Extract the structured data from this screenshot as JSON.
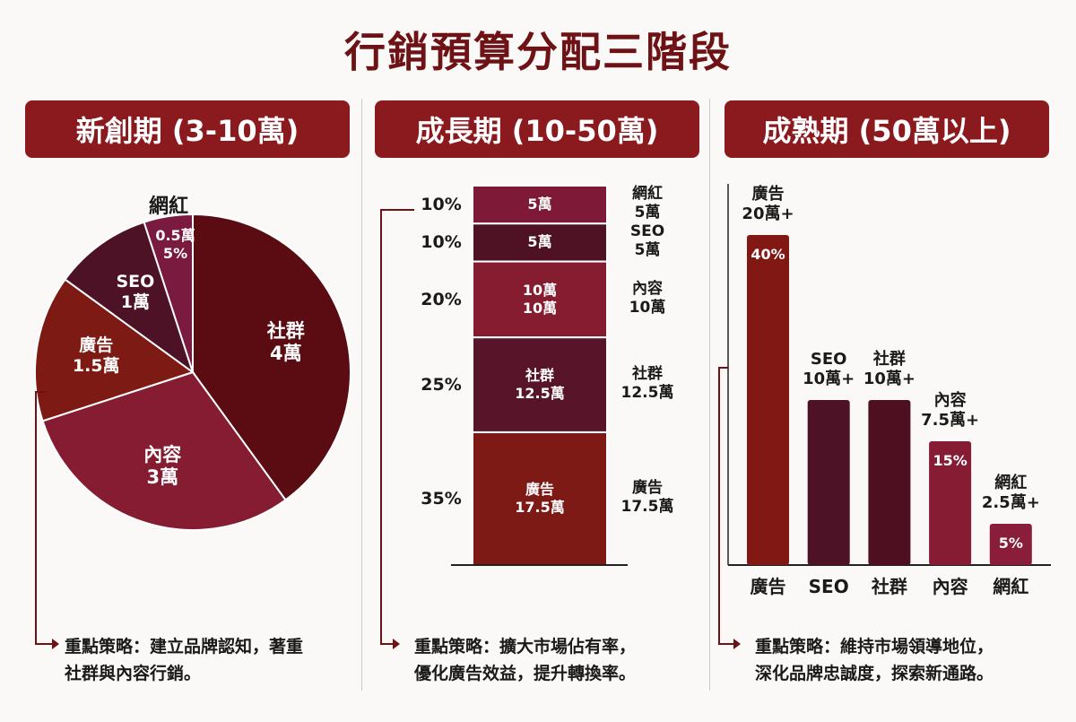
{
  "title": "行銷預算分配三階段",
  "colors": {
    "title": "#6e1216",
    "banner": "#8a1a1e",
    "line": "#6e1216"
  },
  "stages": [
    {
      "banner": "新創期 (3-10萬)",
      "note_line1": "重點策略：建立品牌認知，著重",
      "note_line2": "社群與內容行銷。"
    },
    {
      "banner": "成長期 (10-50萬)",
      "note_line1": "重點策略：擴大市場佔有率，",
      "note_line2": "優化廣告效益，提升轉換率。"
    },
    {
      "banner": "成熟期 (50萬以上)",
      "note_line1": "重點策略：維持市場領導地位，",
      "note_line2": "深化品牌忠誠度，探索新通路。"
    }
  ],
  "chart_data": [
    {
      "type": "pie",
      "unit": "萬",
      "slices": [
        {
          "name": "社群",
          "value": 4,
          "label": "4萬",
          "color": "#5a0c12"
        },
        {
          "name": "內容",
          "value": 3,
          "label": "3萬",
          "color": "#861c32"
        },
        {
          "name": "廣告",
          "value": 1.5,
          "label": "1.5萬",
          "color": "#7e1a14"
        },
        {
          "name": "SEO",
          "value": 1,
          "label": "1萬",
          "color": "#4e1226"
        },
        {
          "name": "網紅",
          "value": 0.5,
          "label": "0.5萬",
          "percent": "5%",
          "color": "#7a1a3e"
        }
      ]
    },
    {
      "type": "bar",
      "stacked": true,
      "segments": [
        {
          "name": "網紅",
          "percent": 10,
          "percent_label": "10%",
          "value_label": "5萬",
          "inner": [
            "5萬"
          ],
          "color": "#7e1a38"
        },
        {
          "name": "SEO",
          "percent": 10,
          "percent_label": "10%",
          "value_label": "5萬",
          "inner": [
            "5萬"
          ],
          "color": "#4e1224"
        },
        {
          "name": "內容",
          "percent": 20,
          "percent_label": "20%",
          "value_label": "10萬",
          "inner": [
            "10萬",
            "10萬"
          ],
          "color": "#861c30"
        },
        {
          "name": "社群",
          "percent": 25,
          "percent_label": "25%",
          "value_label": "12.5萬",
          "inner": [
            "社群",
            "12.5萬"
          ],
          "color": "#581428"
        },
        {
          "name": "廣告",
          "percent": 35,
          "percent_label": "35%",
          "value_label": "17.5萬",
          "inner": [
            "廣告",
            "17.5萬"
          ],
          "color": "#7e1a16"
        }
      ]
    },
    {
      "type": "bar",
      "categories": [
        "廣告",
        "SEO",
        "社群",
        "內容",
        "網紅"
      ],
      "values_percent": [
        40,
        20,
        20,
        15,
        5
      ],
      "value_labels": [
        "20萬+",
        "10萬+",
        "10萬+",
        "7.5萬+",
        "2.5萬+"
      ],
      "inner_labels": [
        "40%",
        "",
        "",
        "15%",
        "5%"
      ],
      "colors": [
        "#821814",
        "#4e1226",
        "#4e1020",
        "#861c34",
        "#8a1e3a"
      ]
    }
  ]
}
